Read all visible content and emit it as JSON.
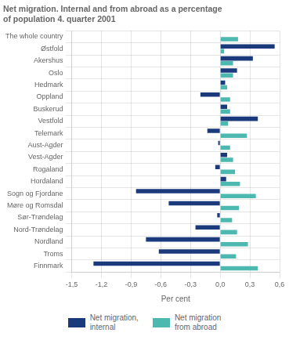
{
  "chart_data": {
    "type": "bar",
    "orientation": "horizontal",
    "title": "Net migration. Internal and from abroad as a percentage\nof population 4. quarter 2001",
    "categories": [
      "The whole country",
      "Østfold",
      "Akershus",
      "Oslo",
      "Hedmark",
      "Oppland",
      "Buskerud",
      "Vestfold",
      "Telemark",
      "Aust-Agder",
      "Vest-Agder",
      "Rogaland",
      "Hordaland",
      "Sogn og Fjordane",
      "Møre og Romsdal",
      "Sør-Trøndelag",
      "Nord-Trøndelag",
      "Nordland",
      "Troms",
      "Finnmark"
    ],
    "series": [
      {
        "name": "Net migration,\ninternal",
        "color": "#1a3a7c",
        "values": [
          0.0,
          0.55,
          0.33,
          0.17,
          0.05,
          -0.2,
          0.07,
          0.38,
          -0.13,
          -0.02,
          0.07,
          -0.05,
          0.06,
          -0.85,
          -0.52,
          -0.03,
          -0.25,
          -0.75,
          -0.62,
          -1.28
        ]
      },
      {
        "name": "Net migration\nfrom abroad",
        "color": "#4db8b0",
        "values": [
          0.18,
          0.04,
          0.13,
          0.13,
          0.07,
          0.1,
          0.1,
          0.08,
          0.27,
          0.1,
          0.13,
          0.15,
          0.2,
          0.36,
          0.19,
          0.12,
          0.17,
          0.28,
          0.16,
          0.38
        ]
      }
    ],
    "xlabel": "Per cent",
    "xlim": [
      -1.5,
      0.6
    ],
    "xticks": [
      {
        "value": -1.5,
        "label": "-1,5"
      },
      {
        "value": -1.2,
        "label": "-1,2"
      },
      {
        "value": -0.9,
        "label": "-0,9"
      },
      {
        "value": -0.6,
        "label": "-0,6"
      },
      {
        "value": -0.3,
        "label": "-0,3"
      },
      {
        "value": 0.0,
        "label": "0,0"
      },
      {
        "value": 0.3,
        "label": "0,3"
      },
      {
        "value": 0.6,
        "label": "0,6"
      }
    ],
    "grid": true,
    "legend": "bottom"
  }
}
